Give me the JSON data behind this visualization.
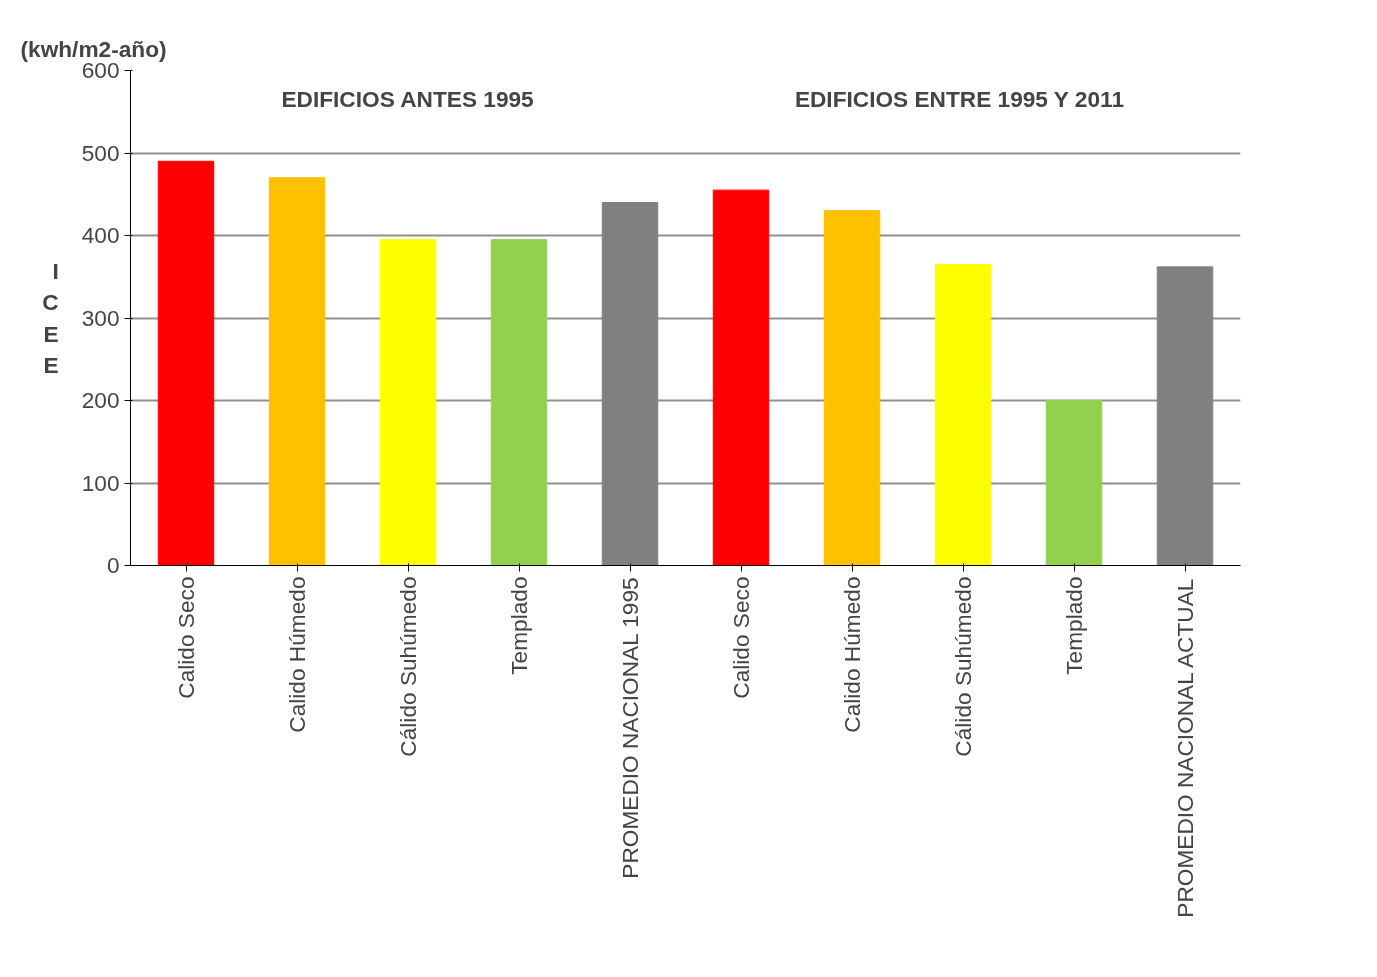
{
  "chart_data": {
    "type": "bar",
    "ylabel": "ICEE",
    "categories": [
      "Calido Seco",
      "Calido Húmedo",
      "Cálido Suhúmedo",
      "Templado",
      "PROMEDIO NACIONAL 1995",
      "Calido Seco",
      "Calido Húmedo",
      "Cálido Suhúmedo",
      "Templado",
      "PROMEDIO NACIONAL ACTUAL"
    ],
    "values": [
      490,
      470,
      395,
      395,
      440,
      455,
      430,
      365,
      200,
      362
    ],
    "colors": [
      "#ff0000",
      "#ffc000",
      "#ffff00",
      "#92d050",
      "#808080",
      "#ff0000",
      "#ffc000",
      "#ffff00",
      "#92d050",
      "#808080"
    ],
    "ylim": [
      0,
      600
    ],
    "yticks": [
      0,
      100,
      200,
      300,
      400,
      500,
      600
    ],
    "grid": "y",
    "annotations": [
      "(kwh/m2-año)",
      "EDIFICIOS ANTES 1995",
      "EDIFICIOS  ENTRE 1995 Y 2011"
    ]
  }
}
